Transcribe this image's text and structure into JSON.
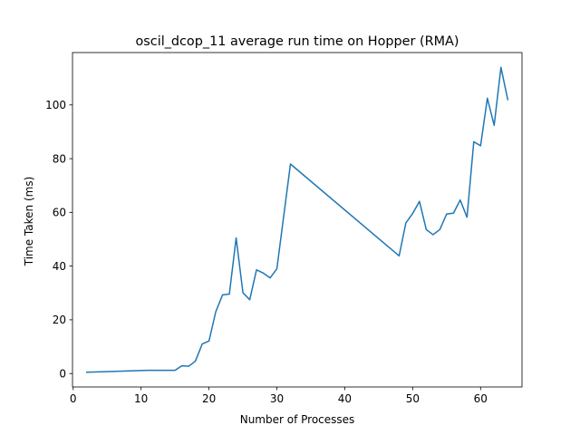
{
  "chart_data": {
    "type": "line",
    "title": "oscil_dcop_11 average run time on Hopper (RMA)",
    "xlabel": "Number of Processes",
    "ylabel": "Time Taken (ms)",
    "xlim": [
      -0.1,
      66.1
    ],
    "ylim": [
      -5.0,
      119.5
    ],
    "xticks": [
      0,
      10,
      20,
      30,
      40,
      50,
      60
    ],
    "yticks": [
      0,
      20,
      40,
      60,
      80,
      100
    ],
    "grid": false,
    "legend": "none",
    "series": [
      {
        "color": "#1f77b4",
        "x": [
          2,
          11,
          15,
          16,
          17,
          18,
          19,
          20,
          21,
          22,
          23,
          24,
          25,
          26,
          27,
          28,
          29,
          30,
          32,
          48,
          49,
          50,
          51,
          52,
          53,
          54,
          55,
          56,
          57,
          58,
          59,
          60,
          61,
          62,
          63,
          64
        ],
        "y": [
          0.5,
          1.2,
          1.2,
          2.9,
          2.7,
          4.6,
          11.0,
          12.1,
          23.0,
          29.3,
          29.6,
          50.5,
          30.1,
          27.5,
          38.6,
          37.4,
          35.6,
          39.0,
          78.0,
          43.8,
          56.1,
          59.6,
          64.1,
          53.6,
          51.7,
          53.6,
          59.4,
          59.7,
          64.6,
          58.2,
          86.3,
          84.8,
          102.5,
          92.4,
          114.0,
          102.0
        ]
      }
    ]
  }
}
